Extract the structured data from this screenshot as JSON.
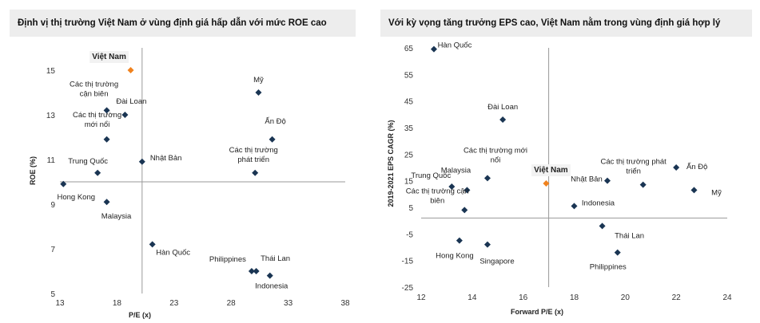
{
  "chart_data": [
    {
      "type": "scatter",
      "title": "Định vị thị trường Việt Nam ở vùng định giá hấp dẫn với mức ROE cao",
      "xlabel": "P/E (x)",
      "ylabel": "ROE (%)",
      "xlim": [
        13,
        38
      ],
      "ylim": [
        5,
        16
      ],
      "xticks": [
        "13",
        "18",
        "23",
        "28",
        "33",
        "38"
      ],
      "yticks": [
        "5",
        "7",
        "9",
        "11",
        "13",
        "15"
      ],
      "ref_x": 20.2,
      "ref_y": 10,
      "highlight_color": "#f0821e",
      "point_color": "#1a3553",
      "points": [
        {
          "label": "Việt Nam",
          "x": 19.2,
          "y": 15.0,
          "highlight": true
        },
        {
          "label": "Các thị trường\ncận biên",
          "x": 17.1,
          "y": 13.2
        },
        {
          "label": "Đài Loan",
          "x": 18.7,
          "y": 13.0
        },
        {
          "label": "Các thị trường\nmới nổi",
          "x": 17.1,
          "y": 11.9
        },
        {
          "label": "Mỹ",
          "x": 30.4,
          "y": 14.0
        },
        {
          "label": "Ấn Độ",
          "x": 31.6,
          "y": 11.9
        },
        {
          "label": "Nhật Bản",
          "x": 20.2,
          "y": 10.9
        },
        {
          "label": "Các thị trường\nphát triển",
          "x": 30.1,
          "y": 10.4
        },
        {
          "label": "Trung Quốc",
          "x": 16.3,
          "y": 10.4
        },
        {
          "label": "Hong Kong",
          "x": 13.3,
          "y": 9.9
        },
        {
          "label": "Malaysia",
          "x": 17.1,
          "y": 9.1
        },
        {
          "label": "Hàn Quốc",
          "x": 21.1,
          "y": 7.2
        },
        {
          "label": "Philippines",
          "x": 29.8,
          "y": 6.0
        },
        {
          "label": "Thái Lan",
          "x": 30.2,
          "y": 6.0
        },
        {
          "label": "Indonesia",
          "x": 31.4,
          "y": 5.8
        }
      ]
    },
    {
      "type": "scatter",
      "title": "Với kỳ vọng tăng trưởng EPS cao, Việt Nam nằm trong vùng định giá hợp lý",
      "xlabel": "Forward P/E (x)",
      "ylabel": "2019-2021 EPS CAGR (%)",
      "xlim": [
        12,
        24
      ],
      "ylim": [
        -25,
        65
      ],
      "xticks": [
        "12",
        "14",
        "16",
        "18",
        "20",
        "22",
        "24"
      ],
      "yticks": [
        "-25",
        "-15",
        "-5",
        "5",
        "15",
        "25",
        "35",
        "45",
        "55",
        "65"
      ],
      "ref_x": 17.0,
      "ref_y": 1.0,
      "highlight_color": "#f0821e",
      "point_color": "#1a3553",
      "points": [
        {
          "label": "Hàn Quốc",
          "x": 12.5,
          "y": 64.5
        },
        {
          "label": "Đài Loan",
          "x": 15.2,
          "y": 38.0
        },
        {
          "label": "Các thị trường mới\nnổi",
          "x": 14.6,
          "y": 16.0
        },
        {
          "label": "Malaysia",
          "x": 13.8,
          "y": 11.5
        },
        {
          "label": "Trung Quốc",
          "x": 13.2,
          "y": 12.8
        },
        {
          "label": "Các thị trường cận\nbiên",
          "x": 13.7,
          "y": 4.0
        },
        {
          "label": "Việt Nam",
          "x": 16.9,
          "y": 14.0,
          "highlight": true
        },
        {
          "label": "Nhật Bản",
          "x": 19.3,
          "y": 15.0
        },
        {
          "label": "Indonesia",
          "x": 18.0,
          "y": 5.5
        },
        {
          "label": "Các thị trường phát\ntriển",
          "x": 20.7,
          "y": 13.5
        },
        {
          "label": "Ấn Độ",
          "x": 22.0,
          "y": 20.0
        },
        {
          "label": "Mỹ",
          "x": 22.7,
          "y": 11.5
        },
        {
          "label": "Thái Lan",
          "x": 19.1,
          "y": -2.0
        },
        {
          "label": "Philippines",
          "x": 19.7,
          "y": -12.0
        },
        {
          "label": "Hong Kong",
          "x": 13.5,
          "y": -7.5
        },
        {
          "label": "Singapore",
          "x": 14.6,
          "y": -9.0
        }
      ]
    }
  ]
}
